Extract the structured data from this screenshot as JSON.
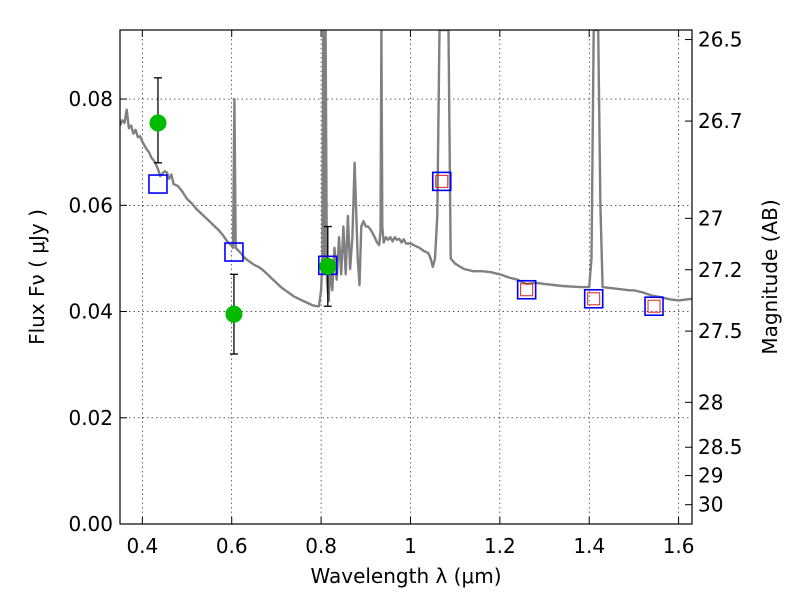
{
  "chart_data": {
    "type": "scatter",
    "title": "",
    "xlabel": "Wavelength  λ (μm)",
    "ylabel": "Flux  Fν  ( μJy )",
    "y2label": "Magnitude (AB)",
    "xlim": [
      0.35,
      1.63
    ],
    "ylim": [
      0.0,
      0.093
    ],
    "grid": true,
    "x_ticks": [
      {
        "value": 0.4,
        "label": "0.4"
      },
      {
        "value": 0.6,
        "label": "0.6"
      },
      {
        "value": 0.8,
        "label": "0.8"
      },
      {
        "value": 1.0,
        "label": "1"
      },
      {
        "value": 1.2,
        "label": "1.2"
      },
      {
        "value": 1.4,
        "label": "1.4"
      },
      {
        "value": 1.6,
        "label": "1.6"
      }
    ],
    "y_ticks": [
      {
        "value": 0.0,
        "label": "0.00"
      },
      {
        "value": 0.02,
        "label": "0.02"
      },
      {
        "value": 0.04,
        "label": "0.04"
      },
      {
        "value": 0.06,
        "label": "0.06"
      },
      {
        "value": 0.08,
        "label": "0.08"
      }
    ],
    "y2_ticks": [
      {
        "value": 26.5,
        "label": "26.5"
      },
      {
        "value": 26.7,
        "label": "26.7"
      },
      {
        "value": 27.0,
        "label": "27"
      },
      {
        "value": 27.2,
        "label": "27.2"
      },
      {
        "value": 27.5,
        "label": "27.5"
      },
      {
        "value": 28.0,
        "label": "28"
      },
      {
        "value": 28.5,
        "label": "28.5"
      },
      {
        "value": 29.0,
        "label": "29"
      },
      {
        "value": 30.0,
        "label": "30"
      }
    ],
    "colors": {
      "spectrum": "#808080",
      "observed": "#00bb00",
      "model_blue": "#0000ff",
      "model_red": "#dd2222",
      "errorbar": "#000000"
    },
    "series": [
      {
        "name": "model spectrum",
        "kind": "line",
        "points": [
          [
            0.35,
            0.075
          ],
          [
            0.355,
            0.076
          ],
          [
            0.36,
            0.0755
          ],
          [
            0.365,
            0.078
          ],
          [
            0.37,
            0.0745
          ],
          [
            0.375,
            0.075
          ],
          [
            0.38,
            0.0735
          ],
          [
            0.385,
            0.0742
          ],
          [
            0.39,
            0.0728
          ],
          [
            0.395,
            0.073
          ],
          [
            0.4,
            0.072
          ],
          [
            0.405,
            0.0712
          ],
          [
            0.41,
            0.0705
          ],
          [
            0.415,
            0.07
          ],
          [
            0.42,
            0.069
          ],
          [
            0.425,
            0.0685
          ],
          [
            0.43,
            0.0678
          ],
          [
            0.435,
            0.0668
          ],
          [
            0.44,
            0.0655
          ],
          [
            0.445,
            0.066
          ],
          [
            0.45,
            0.0664
          ],
          [
            0.455,
            0.0662
          ],
          [
            0.46,
            0.065
          ],
          [
            0.465,
            0.0658
          ],
          [
            0.47,
            0.064
          ],
          [
            0.48,
            0.0636
          ],
          [
            0.49,
            0.0625
          ],
          [
            0.5,
            0.0612
          ],
          [
            0.51,
            0.0604
          ],
          [
            0.52,
            0.0594
          ],
          [
            0.53,
            0.0586
          ],
          [
            0.54,
            0.0578
          ],
          [
            0.55,
            0.057
          ],
          [
            0.56,
            0.0562
          ],
          [
            0.57,
            0.0554
          ],
          [
            0.58,
            0.0544
          ],
          [
            0.59,
            0.0532
          ],
          [
            0.6,
            0.0524
          ],
          [
            0.603,
            0.052
          ],
          [
            0.606,
            0.08
          ],
          [
            0.609,
            0.052
          ],
          [
            0.62,
            0.051
          ],
          [
            0.63,
            0.05
          ],
          [
            0.64,
            0.0494
          ],
          [
            0.65,
            0.0488
          ],
          [
            0.66,
            0.0484
          ],
          [
            0.67,
            0.0478
          ],
          [
            0.68,
            0.047
          ],
          [
            0.69,
            0.0462
          ],
          [
            0.7,
            0.0454
          ],
          [
            0.71,
            0.0446
          ],
          [
            0.72,
            0.044
          ],
          [
            0.73,
            0.0434
          ],
          [
            0.74,
            0.0428
          ],
          [
            0.75,
            0.0424
          ],
          [
            0.76,
            0.042
          ],
          [
            0.77,
            0.0416
          ],
          [
            0.78,
            0.0412
          ],
          [
            0.79,
            0.041
          ],
          [
            0.795,
            0.041
          ],
          [
            0.8,
            0.044
          ],
          [
            0.803,
            0.05
          ],
          [
            0.805,
            0.093
          ],
          [
            0.807,
            0.047
          ],
          [
            0.81,
            0.093
          ],
          [
            0.813,
            0.046
          ],
          [
            0.817,
            0.042
          ],
          [
            0.82,
            0.048
          ],
          [
            0.825,
            0.044
          ],
          [
            0.83,
            0.052
          ],
          [
            0.835,
            0.046
          ],
          [
            0.84,
            0.054
          ],
          [
            0.845,
            0.047
          ],
          [
            0.85,
            0.056
          ],
          [
            0.855,
            0.047
          ],
          [
            0.86,
            0.058
          ],
          [
            0.865,
            0.048
          ],
          [
            0.87,
            0.054
          ],
          [
            0.875,
            0.068
          ],
          [
            0.878,
            0.06
          ],
          [
            0.882,
            0.05
          ],
          [
            0.886,
            0.045
          ],
          [
            0.89,
            0.056
          ],
          [
            0.895,
            0.057
          ],
          [
            0.9,
            0.056
          ],
          [
            0.905,
            0.056
          ],
          [
            0.91,
            0.0555
          ],
          [
            0.915,
            0.0548
          ],
          [
            0.92,
            0.054
          ],
          [
            0.925,
            0.053
          ],
          [
            0.93,
            0.0525
          ],
          [
            0.933,
            0.055
          ],
          [
            0.935,
            0.093
          ],
          [
            0.937,
            0.056
          ],
          [
            0.94,
            0.053
          ],
          [
            0.945,
            0.054
          ],
          [
            0.95,
            0.0535
          ],
          [
            0.955,
            0.054
          ],
          [
            0.96,
            0.0532
          ],
          [
            0.965,
            0.054
          ],
          [
            0.97,
            0.0535
          ],
          [
            0.975,
            0.0537
          ],
          [
            0.98,
            0.053
          ],
          [
            0.985,
            0.0536
          ],
          [
            0.99,
            0.0528
          ],
          [
            1.0,
            0.0528
          ],
          [
            1.01,
            0.0524
          ],
          [
            1.02,
            0.052
          ],
          [
            1.03,
            0.0514
          ],
          [
            1.04,
            0.051
          ],
          [
            1.045,
            0.05
          ],
          [
            1.05,
            0.0484
          ],
          [
            1.055,
            0.05
          ],
          [
            1.06,
            0.058
          ],
          [
            1.065,
            0.093
          ],
          [
            1.085,
            0.093
          ],
          [
            1.09,
            0.05
          ],
          [
            1.095,
            0.0495
          ],
          [
            1.1,
            0.049
          ],
          [
            1.11,
            0.0485
          ],
          [
            1.12,
            0.048
          ],
          [
            1.14,
            0.0476
          ],
          [
            1.16,
            0.0476
          ],
          [
            1.18,
            0.0474
          ],
          [
            1.2,
            0.047
          ],
          [
            1.22,
            0.0464
          ],
          [
            1.24,
            0.046
          ],
          [
            1.25,
            0.0455
          ],
          [
            1.26,
            0.0452
          ],
          [
            1.28,
            0.0454
          ],
          [
            1.3,
            0.0452
          ],
          [
            1.32,
            0.045
          ],
          [
            1.34,
            0.0448
          ],
          [
            1.36,
            0.0447
          ],
          [
            1.38,
            0.0446
          ],
          [
            1.39,
            0.0446
          ],
          [
            1.4,
            0.0446
          ],
          [
            1.405,
            0.05
          ],
          [
            1.41,
            0.093
          ],
          [
            1.42,
            0.093
          ],
          [
            1.425,
            0.06
          ],
          [
            1.43,
            0.0446
          ],
          [
            1.45,
            0.0444
          ],
          [
            1.47,
            0.0442
          ],
          [
            1.49,
            0.044
          ],
          [
            1.5,
            0.044
          ],
          [
            1.52,
            0.0436
          ],
          [
            1.54,
            0.043
          ],
          [
            1.56,
            0.0427
          ],
          [
            1.58,
            0.0423
          ],
          [
            1.6,
            0.0421
          ],
          [
            1.63,
            0.0424
          ]
        ]
      },
      {
        "name": "observed photometry",
        "kind": "scatter_errorbar",
        "points": [
          {
            "x": 0.435,
            "y": 0.0755,
            "yerr_low": 0.0075,
            "yerr_high": 0.0085
          },
          {
            "x": 0.605,
            "y": 0.0395,
            "yerr_low": 0.0075,
            "yerr_high": 0.0075
          },
          {
            "x": 0.815,
            "y": 0.0485,
            "yerr_low": 0.0075,
            "yerr_high": 0.0075
          }
        ]
      },
      {
        "name": "model photometry",
        "kind": "square_marker",
        "points": [
          {
            "x": 0.435,
            "y": 0.064
          },
          {
            "x": 0.605,
            "y": 0.0512
          },
          {
            "x": 0.815,
            "y": 0.0487
          },
          {
            "x": 1.07,
            "y": 0.0645
          },
          {
            "x": 1.26,
            "y": 0.0441
          },
          {
            "x": 1.41,
            "y": 0.0424
          },
          {
            "x": 1.545,
            "y": 0.041
          }
        ]
      },
      {
        "name": "upper limits",
        "kind": "inner_red_square",
        "points": [
          {
            "x": 1.07,
            "y": 0.0645
          },
          {
            "x": 1.26,
            "y": 0.0441
          },
          {
            "x": 1.41,
            "y": 0.0424
          },
          {
            "x": 1.545,
            "y": 0.041
          }
        ]
      }
    ]
  }
}
